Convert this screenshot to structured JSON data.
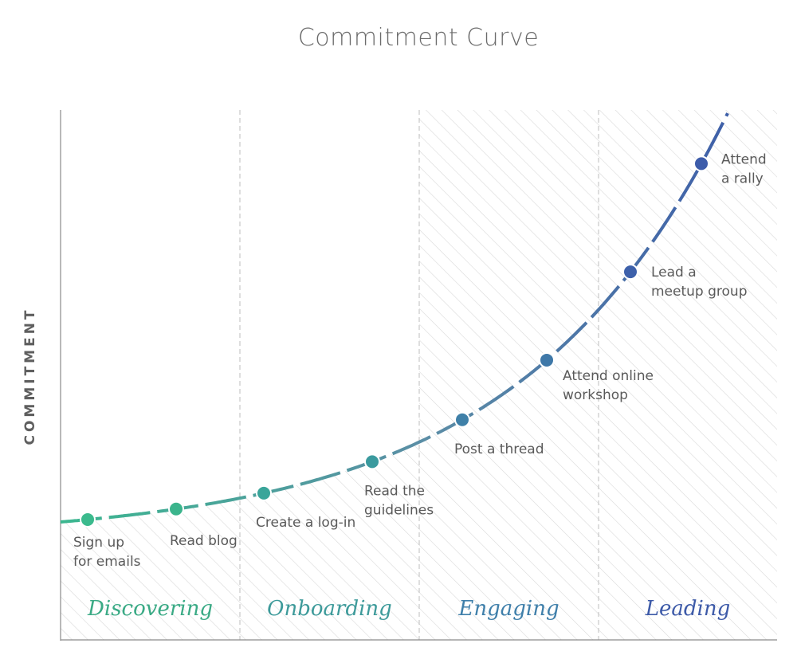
{
  "title": "Commitment Curve",
  "y_axis_label": "COMMITMENT",
  "colors": {
    "start": "#3bb78f",
    "middle": "#5b8da6",
    "end": "#3e5fa8",
    "hatch": "#d9d9d9",
    "divider": "#bdbdbd",
    "axis": "#8a8a8a"
  },
  "phases": [
    {
      "name": "Discovering",
      "color": "#3aaa85",
      "hatched": false
    },
    {
      "name": "Onboarding",
      "color": "#3d9a9a",
      "hatched": false
    },
    {
      "name": "Engaging",
      "color": "#3f7faa",
      "hatched": true
    },
    {
      "name": "Leading",
      "color": "#3d5aa8",
      "hatched": true
    }
  ],
  "steps": [
    {
      "label_lines": [
        "Sign up",
        "for emails"
      ],
      "color": "#3bba8d"
    },
    {
      "label_lines": [
        "Read blog"
      ],
      "color": "#3bb48c"
    },
    {
      "label_lines": [
        "Create a log-in"
      ],
      "color": "#3aa59a"
    },
    {
      "label_lines": [
        "Read the",
        "guidelines"
      ],
      "color": "#3a9a9e"
    },
    {
      "label_lines": [
        "Post a thread"
      ],
      "color": "#3f80a8"
    },
    {
      "label_lines": [
        "Attend online",
        "workshop"
      ],
      "color": "#3f78a8"
    },
    {
      "label_lines": [
        "Lead a",
        "meetup group"
      ],
      "color": "#3d60aa"
    },
    {
      "label_lines": [
        "Attend",
        "a rally"
      ],
      "color": "#3d5caa"
    }
  ]
}
